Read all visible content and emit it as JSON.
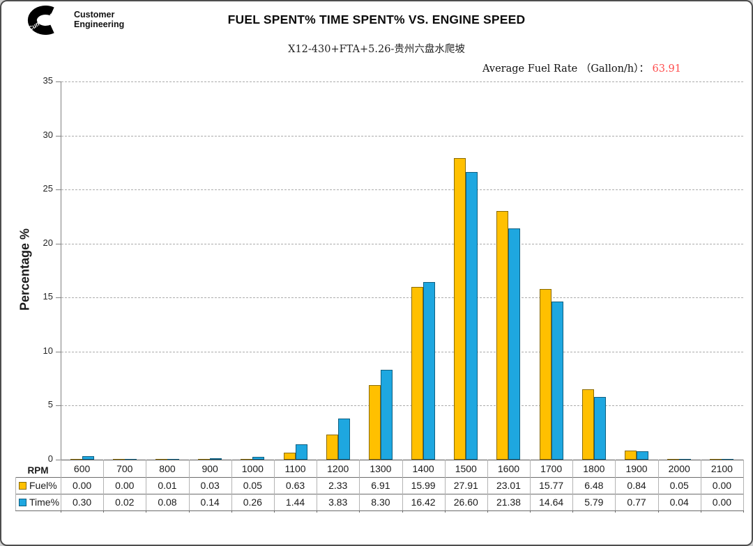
{
  "logo": {
    "brand": "Cummins",
    "line1": "Customer",
    "line2": "Engineering"
  },
  "header": {
    "title": "FUEL SPENT% TIME SPENT% VS. ENGINE SPEED",
    "subtitle": "X12-430+FTA+5.26-贵州六盘水爬坡"
  },
  "average_fuel_rate": {
    "label": "Average Fuel Rate （Gallon/h）： ",
    "value": "63.91",
    "value_color": "#ff4d4d"
  },
  "chart_data": {
    "type": "bar",
    "title": "FUEL SPENT% TIME SPENT% VS. ENGINE SPEED",
    "xlabel": "RPM",
    "ylabel": "Percentage %",
    "ylim": [
      0,
      35
    ],
    "ytick_step": 5,
    "grid": "horizontal-dashed",
    "legend_position": "data-table-left-column",
    "categories": [
      600,
      700,
      800,
      900,
      1000,
      1100,
      1200,
      1300,
      1400,
      1500,
      1600,
      1700,
      1800,
      1900,
      2000,
      2100
    ],
    "series": [
      {
        "name": "Fuel%",
        "color": "#FFC000",
        "border_color": "#8a6a00",
        "values": [
          0.0,
          0.0,
          0.01,
          0.03,
          0.05,
          0.63,
          2.33,
          6.91,
          15.99,
          27.91,
          23.01,
          15.77,
          6.48,
          0.84,
          0.05,
          0.0
        ]
      },
      {
        "name": "Time%",
        "color": "#1EA7E0",
        "border_color": "#0f5f80",
        "values": [
          0.3,
          0.02,
          0.08,
          0.14,
          0.26,
          1.44,
          3.83,
          8.3,
          16.42,
          26.6,
          21.38,
          14.64,
          5.79,
          0.77,
          0.04,
          0.0
        ]
      }
    ],
    "value_format": "2dp",
    "row_header_label": "RPM"
  }
}
